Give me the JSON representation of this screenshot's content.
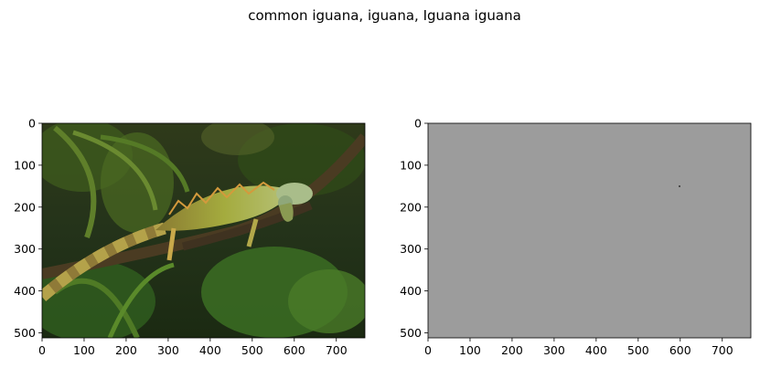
{
  "figure": {
    "title": "common iguana, iguana, Iguana iguana"
  },
  "panels": [
    {
      "name": "original-photo",
      "content": "photo of a green iguana on a branch among tropical foliage",
      "x_ticks": [
        "0",
        "100",
        "200",
        "300",
        "400",
        "500",
        "600",
        "700"
      ],
      "y_ticks": [
        "0",
        "100",
        "200",
        "300",
        "400",
        "500"
      ],
      "x_range": [
        0,
        768
      ],
      "y_range": [
        0,
        512
      ]
    },
    {
      "name": "gray-residual",
      "content": "nearly uniform gray image with a tiny dark speck",
      "fill_color": "#9c9c9c",
      "x_ticks": [
        "0",
        "100",
        "200",
        "300",
        "400",
        "500",
        "600",
        "700"
      ],
      "y_ticks": [
        "0",
        "100",
        "200",
        "300",
        "400",
        "500"
      ],
      "x_range": [
        0,
        768
      ],
      "y_range": [
        0,
        512
      ]
    }
  ],
  "colors": {
    "background": "#ffffff",
    "axis": "#000000",
    "gray_panel": "#9c9c9c",
    "foliage_dark": "#1f2a0f",
    "foliage_mid": "#3c5a1c",
    "iguana_body": "#9cab3c",
    "iguana_head": "#a9bd8a"
  }
}
